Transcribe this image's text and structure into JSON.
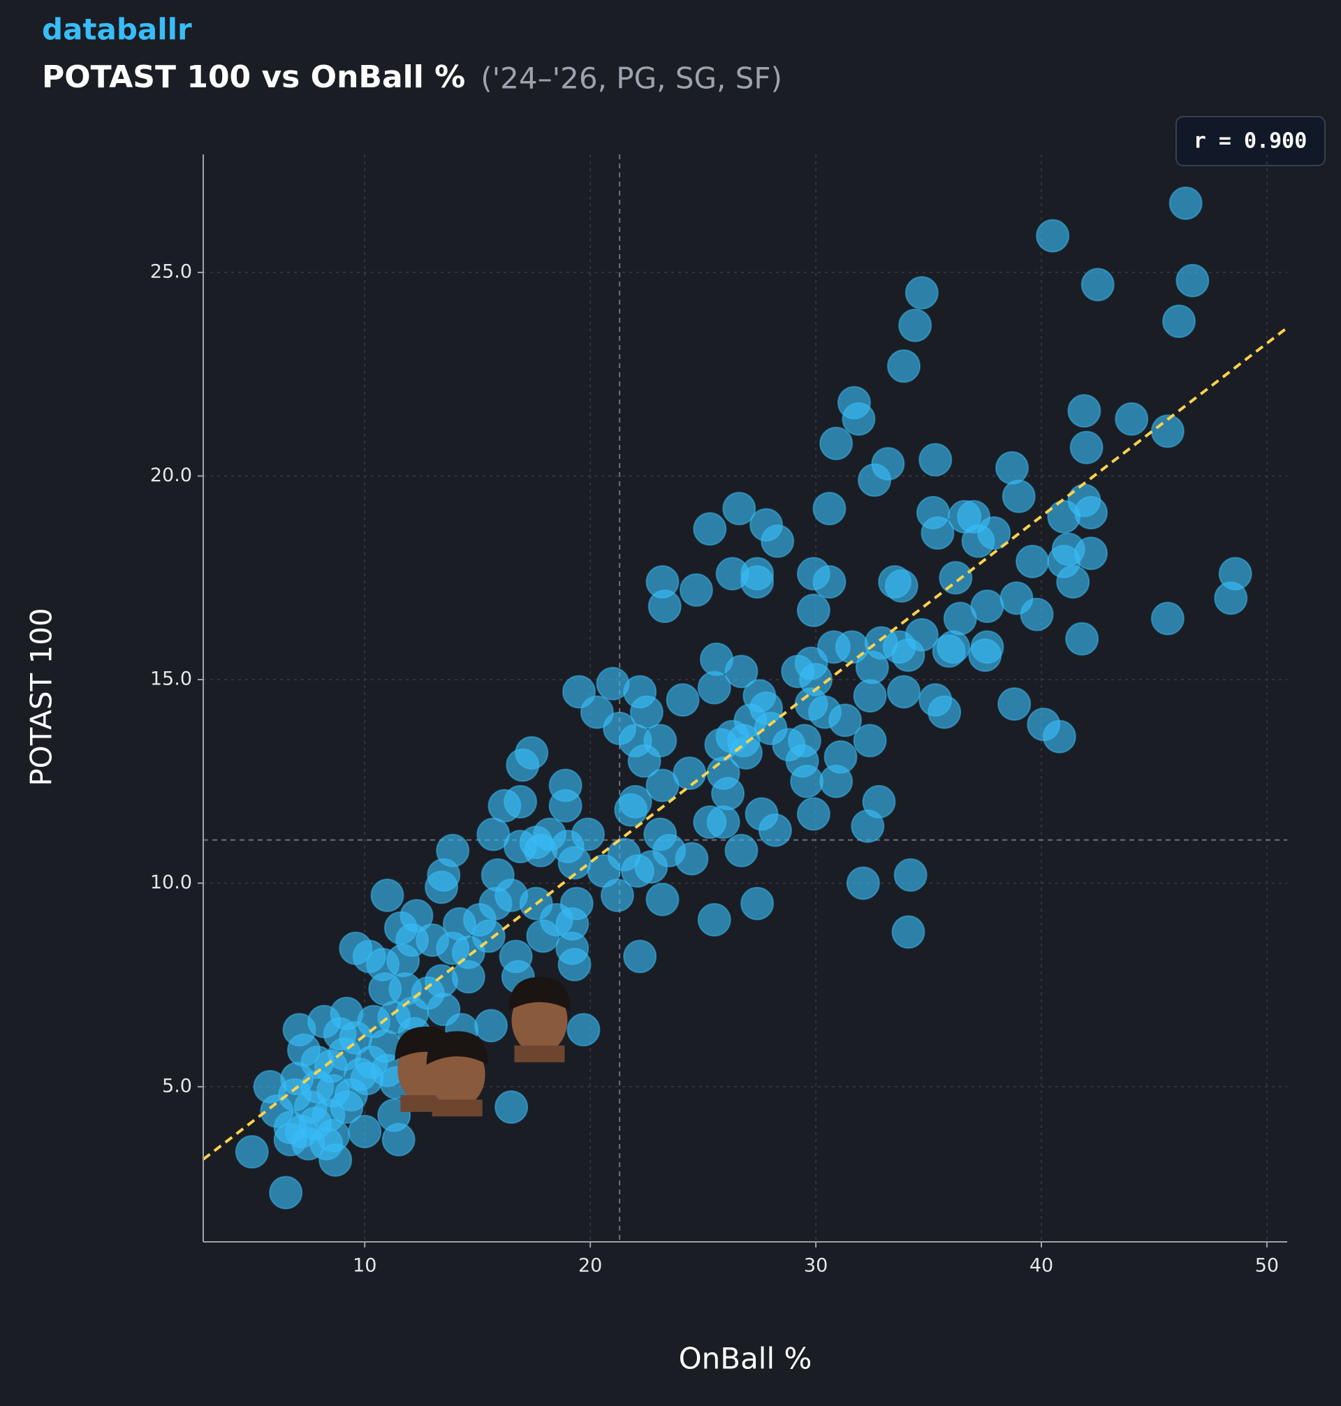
{
  "chart_data": {
    "type": "scatter",
    "brand": "databallr",
    "title": "POTAST 100 vs OnBall %",
    "subtitle": "('24–'26, PG, SG, SF)",
    "annotation": "r = 0.900",
    "x_label": "OnBall %",
    "y_label": "POTAST 100",
    "color": "#38bdf8",
    "xlim": [
      2.84,
      50.9
    ],
    "ylim": [
      1.19,
      27.9
    ],
    "xticks": [
      10,
      20,
      30,
      40,
      50
    ],
    "yticks": [
      {
        "value": 5,
        "label": "5.0"
      },
      {
        "value": 10,
        "label": "10.0"
      },
      {
        "value": 15,
        "label": "15.0"
      },
      {
        "value": 20,
        "label": "20.0"
      },
      {
        "value": 25,
        "label": "25.0"
      }
    ],
    "grid": true,
    "reference_lines": {
      "x": 21.3,
      "y": 11.06
    },
    "trendline": {
      "slope": 0.425,
      "intercept": 2.01,
      "color": "#fcd34d"
    },
    "x": [
      46.4,
      40.5,
      42.5,
      46.7,
      46.1,
      34.7,
      34.4,
      33.9,
      31.7,
      31.9,
      30.9,
      44.0,
      45.6,
      41.9,
      42.0,
      33.2,
      35.3,
      32.6,
      38.7,
      39.0,
      30.6,
      26.6,
      25.3,
      27.8,
      28.3,
      35.2,
      35.4,
      37.0,
      36.6,
      37.2,
      37.9,
      41.0,
      41.9,
      42.2,
      41.2,
      42.2,
      39.6,
      41.0,
      41.4,
      23.2,
      24.7,
      26.3,
      27.4,
      27.4,
      29.9,
      30.6,
      33.5,
      33.8,
      36.2,
      23.3,
      29.9,
      36.4,
      37.6,
      38.9,
      39.8,
      45.6,
      48.6,
      48.4,
      41.8,
      30.8,
      31.6,
      32.9,
      33.7,
      34.1,
      34.7,
      32.5,
      35.9,
      36.1,
      37.6,
      37.5,
      25.6,
      26.7,
      29.2,
      29.8,
      30.0,
      21.0,
      22.2,
      19.5,
      20.3,
      22.5,
      24.1,
      25.5,
      27.5,
      27.8,
      29.8,
      30.4,
      31.3,
      32.4,
      33.9,
      35.3,
      35.7,
      38.8,
      40.1,
      40.8,
      21.3,
      22.0,
      22.4,
      23.1,
      25.8,
      26.3,
      26.8,
      27.1,
      28.0,
      28.8,
      29.5,
      29.4,
      31.1,
      32.4,
      17.0,
      17.4,
      23.2,
      24.4,
      25.9,
      26.9,
      29.6,
      30.9,
      16.2,
      16.9,
      18.9,
      18.9,
      21.8,
      22.0,
      23.1,
      25.3,
      25.9,
      26.1,
      27.6,
      28.2,
      29.9,
      32.3,
      32.8,
      15.7,
      16.9,
      17.6,
      18.2,
      19.0,
      19.9,
      13.9,
      17.8,
      19.3,
      20.6,
      21.5,
      22.1,
      22.7,
      23.5,
      24.5,
      26.7,
      32.1,
      34.2,
      13.5,
      15.9,
      13.4,
      21.2,
      23.2,
      27.4,
      11.0,
      12.3,
      14.2,
      15.1,
      15.8,
      16.5,
      17.6,
      18.5,
      19.4,
      19.2,
      25.5,
      34.1,
      11.6,
      12.1,
      13.0,
      13.9,
      15.5,
      16.7,
      17.9,
      19.2,
      22.2,
      9.6,
      10.2,
      10.8,
      11.7,
      14.6,
      19.3,
      10.9,
      11.8,
      12.8,
      13.4,
      14.6,
      16.8,
      12.1,
      13.5,
      15.6,
      19.7,
      9.2,
      10.4,
      11.3,
      12.2,
      14.3,
      7.1,
      8.2,
      8.9,
      9.6,
      10.9,
      7.3,
      7.9,
      8.5,
      9.1,
      9.8,
      10.3,
      11.0,
      12.3,
      5.8,
      7.0,
      7.9,
      8.6,
      9.4,
      10.1,
      11.4,
      6.1,
      6.9,
      7.6,
      8.4,
      9.2,
      11.3,
      16.5,
      6.7,
      7.2,
      7.8,
      8.6,
      10.0,
      11.5,
      6.7,
      7.5,
      8.3,
      5.0,
      8.7,
      6.5
    ],
    "values": [
      26.7,
      25.9,
      24.7,
      24.8,
      23.8,
      24.5,
      23.7,
      22.7,
      21.8,
      21.4,
      20.8,
      21.4,
      21.1,
      21.6,
      20.7,
      20.3,
      20.4,
      19.9,
      20.2,
      19.5,
      19.2,
      19.2,
      18.7,
      18.8,
      18.4,
      19.1,
      18.6,
      19.0,
      19.0,
      18.4,
      18.6,
      19.0,
      19.4,
      19.1,
      18.2,
      18.1,
      17.9,
      17.9,
      17.4,
      17.4,
      17.2,
      17.6,
      17.6,
      17.4,
      17.6,
      17.4,
      17.4,
      17.3,
      17.5,
      16.8,
      16.7,
      16.5,
      16.8,
      17.0,
      16.6,
      16.5,
      17.6,
      17.0,
      16.0,
      15.8,
      15.8,
      15.9,
      15.8,
      15.6,
      16.1,
      15.3,
      15.7,
      15.8,
      15.8,
      15.6,
      15.5,
      15.2,
      15.2,
      15.4,
      15.0,
      14.9,
      14.7,
      14.7,
      14.2,
      14.2,
      14.5,
      14.8,
      14.6,
      14.3,
      14.4,
      14.2,
      14.0,
      14.6,
      14.7,
      14.5,
      14.2,
      14.4,
      13.9,
      13.6,
      13.8,
      13.5,
      13.0,
      13.5,
      13.4,
      13.6,
      13.5,
      14.0,
      13.8,
      13.4,
      13.5,
      13.0,
      13.1,
      13.5,
      12.9,
      13.2,
      12.4,
      12.7,
      12.7,
      13.2,
      12.5,
      12.5,
      11.9,
      12.0,
      12.4,
      11.9,
      11.8,
      12.0,
      11.2,
      11.5,
      11.5,
      12.2,
      11.7,
      11.3,
      11.7,
      11.4,
      12.0,
      11.2,
      10.9,
      11.0,
      11.2,
      10.9,
      11.2,
      10.8,
      10.8,
      10.5,
      10.3,
      10.7,
      10.3,
      10.4,
      10.8,
      10.6,
      10.8,
      10.0,
      10.2,
      10.2,
      10.2,
      9.9,
      9.7,
      9.6,
      9.5,
      9.7,
      9.2,
      9.0,
      9.1,
      9.5,
      9.7,
      9.5,
      9.1,
      9.5,
      9.0,
      9.1,
      8.8,
      8.9,
      8.6,
      8.6,
      8.4,
      8.7,
      8.2,
      8.7,
      8.4,
      8.2,
      8.4,
      8.2,
      8.0,
      8.1,
      8.3,
      8.0,
      7.4,
      7.4,
      7.3,
      7.6,
      7.7,
      7.7,
      6.8,
      6.9,
      6.5,
      6.4,
      6.8,
      6.6,
      6.7,
      6.3,
      6.4,
      6.4,
      6.6,
      6.3,
      6.2,
      6.0,
      5.9,
      5.6,
      5.5,
      5.8,
      5.3,
      5.6,
      5.4,
      5.5,
      5.0,
      5.2,
      5.0,
      4.9,
      4.8,
      5.2,
      5.1,
      4.4,
      4.8,
      4.5,
      4.3,
      4.5,
      4.3,
      4.5,
      4.0,
      3.9,
      4.1,
      3.8,
      3.9,
      3.7,
      3.7,
      3.6,
      3.6,
      3.4,
      3.2,
      2.4
    ],
    "highlight": {
      "x": [
        12.7,
        14.1,
        17.75
      ],
      "values": [
        5.48,
        5.37,
        6.7
      ]
    }
  }
}
